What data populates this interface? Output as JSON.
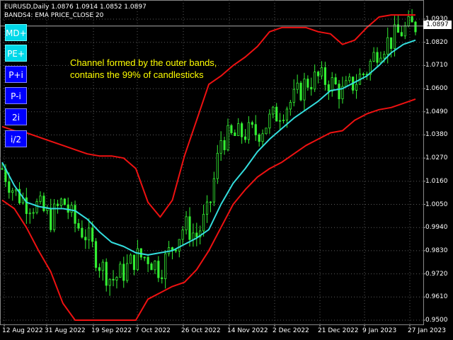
{
  "header": {
    "symbol_line": "EURUSD,Daily  1.0876 1.0914 1.0852 1.0897",
    "indicator_line": "BANDS4: EMA PRICE_CLOSE 20"
  },
  "buttons": [
    {
      "label": "MD+",
      "style": "cyan"
    },
    {
      "label": "PE+",
      "style": "cyan"
    },
    {
      "label": "P+i",
      "style": "blue"
    },
    {
      "label": "P-i",
      "style": "blue"
    },
    {
      "label": "2i",
      "style": "blue"
    },
    {
      "label": "i/2",
      "style": "blue"
    }
  ],
  "annotation": {
    "line1": "Channel formed by  the outer bands,",
    "line2": "contains the 99% of candlesticks"
  },
  "current_price": "1.0897",
  "colors": {
    "background": "#000000",
    "candles": "#33ee33",
    "ema": "#33dddd",
    "bands": "#ee1111",
    "grid": "#5a5a5a",
    "annotation": "#ffff00"
  },
  "chart_data": {
    "type": "line",
    "y_ticks": [
      "1.0930",
      "1.0820",
      "1.0710",
      "1.0600",
      "1.0490",
      "1.0380",
      "1.0270",
      "1.0160",
      "1.0050",
      "0.9940",
      "0.9830",
      "0.9720",
      "0.9610",
      "0.9500"
    ],
    "x_ticks": [
      "12 Aug 2022",
      "31 Aug 2022",
      "19 Sep 2022",
      "7 Oct 2022",
      "26 Oct 2022",
      "14 Nov 2022",
      "2 Dec 2022",
      "21 Dec 2022",
      "9 Jan 2023",
      "27 Jan 2023"
    ],
    "ylim": [
      0.95,
      1.095
    ],
    "series": [
      {
        "role": "ema",
        "values": [
          1.025,
          1.014,
          1.006,
          1.004,
          1.003,
          1.003,
          1.002,
          0.998,
          0.992,
          0.987,
          0.985,
          0.982,
          0.981,
          0.982,
          0.983,
          0.986,
          0.989,
          0.993,
          1.005,
          1.015,
          1.022,
          1.03,
          1.036,
          1.041,
          1.046,
          1.05,
          1.054,
          1.059,
          1.06,
          1.063,
          1.066,
          1.071,
          1.077,
          1.081,
          1.083
        ]
      },
      {
        "role": "upper_band",
        "values": [
          1.042,
          1.04,
          1.039,
          1.037,
          1.035,
          1.033,
          1.031,
          1.029,
          1.028,
          1.028,
          1.027,
          1.022,
          1.006,
          0.999,
          1.007,
          1.028,
          1.045,
          1.062,
          1.066,
          1.071,
          1.075,
          1.08,
          1.087,
          1.089,
          1.089,
          1.089,
          1.087,
          1.086,
          1.081,
          1.083,
          1.089,
          1.094,
          1.095,
          1.095,
          1.095
        ]
      },
      {
        "role": "lower_band",
        "values": [
          1.007,
          1.003,
          0.994,
          0.983,
          0.973,
          0.958,
          0.95,
          0.95,
          0.95,
          0.95,
          0.95,
          0.95,
          0.96,
          0.963,
          0.966,
          0.968,
          0.974,
          0.983,
          0.994,
          1.005,
          1.012,
          1.018,
          1.022,
          1.025,
          1.029,
          1.033,
          1.036,
          1.039,
          1.04,
          1.045,
          1.048,
          1.05,
          1.051,
          1.053,
          1.055
        ]
      },
      {
        "role": "close",
        "values": [
          1.022,
          1.011,
          1.006,
          1.004,
          0.998,
          1.007,
          0.996,
          0.99,
          0.977,
          0.969,
          0.973,
          0.98,
          0.98,
          0.974,
          0.985,
          0.995,
          0.99,
          1.002,
          1.036,
          1.037,
          1.039,
          1.039,
          1.045,
          1.05,
          1.055,
          1.063,
          1.065,
          1.063,
          1.058,
          1.063,
          1.069,
          1.08,
          1.083,
          1.088,
          1.09
        ]
      }
    ]
  }
}
